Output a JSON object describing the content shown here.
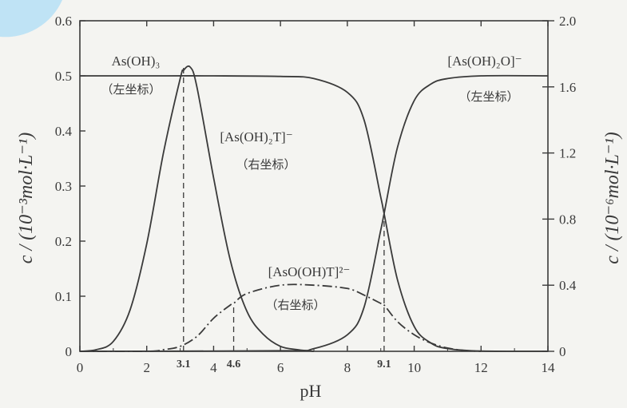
{
  "chart_data": {
    "type": "line",
    "xlabel": "pH",
    "ylabel_left": "c / (10⁻³mol·L⁻¹)",
    "ylabel_right": "c / (10⁻⁶mol·L⁻¹)",
    "xlim": [
      0,
      14
    ],
    "ylim_left": [
      0,
      0.6
    ],
    "ylim_right": [
      0,
      2.0
    ],
    "x_ticks": [
      "0",
      "2",
      "4",
      "6",
      "8",
      "10",
      "12",
      "14"
    ],
    "y_left_ticks": [
      "0",
      "0.1",
      "0.2",
      "0.3",
      "0.4",
      "0.5",
      "0.6"
    ],
    "y_right_ticks": [
      "0",
      "0.4",
      "0.8",
      "1.2",
      "1.6",
      "2.0"
    ],
    "marked_x": [
      "3.1",
      "4.6",
      "9.1"
    ],
    "series": [
      {
        "name": "As(OH)₃",
        "axis": "左坐标",
        "style": "solid",
        "x": [
          0,
          2,
          4,
          6,
          7,
          8,
          8.5,
          9,
          9.1,
          9.5,
          10,
          10.5,
          11,
          12,
          14
        ],
        "values": [
          0.5,
          0.5,
          0.5,
          0.499,
          0.495,
          0.47,
          0.42,
          0.28,
          0.25,
          0.13,
          0.045,
          0.015,
          0.005,
          0.0005,
          0
        ]
      },
      {
        "name": "[As(OH)₂O]⁻",
        "axis": "左坐标",
        "style": "solid",
        "x": [
          0,
          6,
          7,
          8,
          8.5,
          9,
          9.1,
          9.5,
          10,
          10.5,
          11,
          12,
          14
        ],
        "values": [
          0,
          0.001,
          0.005,
          0.03,
          0.08,
          0.22,
          0.25,
          0.37,
          0.455,
          0.485,
          0.495,
          0.5,
          0.5
        ]
      },
      {
        "name": "[As(OH)₂T]⁻",
        "axis": "右坐标",
        "style": "solid",
        "x": [
          0,
          0.5,
          1,
          1.5,
          2,
          2.5,
          3,
          3.1,
          3.3,
          3.5,
          4,
          4.5,
          5,
          5.5,
          6,
          6.5,
          7
        ],
        "values": [
          0,
          0.01,
          0.06,
          0.25,
          0.65,
          1.2,
          1.65,
          1.7,
          1.72,
          1.6,
          1.05,
          0.55,
          0.24,
          0.1,
          0.03,
          0.01,
          0
        ]
      },
      {
        "name": "[AsO(OH)T]²⁻",
        "axis": "右坐标",
        "style": "dash-dot",
        "x": [
          0,
          2,
          2.5,
          3,
          3.5,
          4,
          4.5,
          4.6,
          5,
          6,
          7,
          8,
          8.5,
          9,
          9.1,
          9.5,
          10,
          10.5,
          11,
          11.5,
          12
        ],
        "values": [
          0,
          0,
          0.01,
          0.03,
          0.09,
          0.2,
          0.28,
          0.29,
          0.35,
          0.4,
          0.4,
          0.38,
          0.34,
          0.29,
          0.28,
          0.18,
          0.1,
          0.05,
          0.02,
          0.005,
          0
        ]
      }
    ],
    "annotations": {
      "as_oh3": "As(OH)₃",
      "as_oh3_axis": "（左坐标）",
      "as_oh2o": "[As(OH)₂O]⁻",
      "as_oh2o_axis": "（左坐标）",
      "as_oh2t": "[As(OH)₂T]⁻",
      "as_oh2t_axis": "（右坐标）",
      "aso_ohT": "[AsO(OH)T]²⁻",
      "aso_ohT_axis": "（右坐标）"
    },
    "colors": {
      "curve": "#3a3a3a",
      "axis": "#3a3a3a",
      "background": "#f4f4f1",
      "corner_accent": "#bfe3f5"
    }
  }
}
